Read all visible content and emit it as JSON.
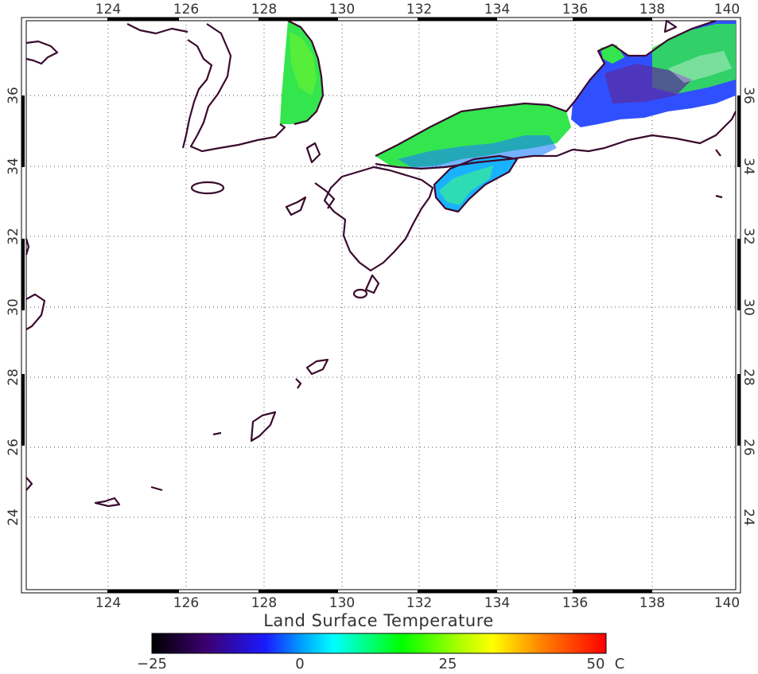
{
  "map": {
    "title": "Land Surface Temperature",
    "lon_range": [
      121.7,
      140.2
    ],
    "lat_range": [
      21.9,
      38.0
    ],
    "lon_ticks": [
      "124",
      "126",
      "128",
      "130",
      "132",
      "134",
      "136",
      "138",
      "140"
    ],
    "lat_ticks": [
      "24",
      "26",
      "28",
      "30",
      "32",
      "34",
      "36"
    ],
    "gridlines": "dotted",
    "coastline_color": "#3a0a2e"
  },
  "colorbar": {
    "min_label": "−25",
    "mid1_label": "0",
    "mid2_label": "25",
    "max_label": "50",
    "unit": "C",
    "stops": [
      "#000000",
      "#3c0070",
      "#1a1aff",
      "#00ffff",
      "#00ff00",
      "#ffff00",
      "#ff8000",
      "#ff0000"
    ]
  }
}
